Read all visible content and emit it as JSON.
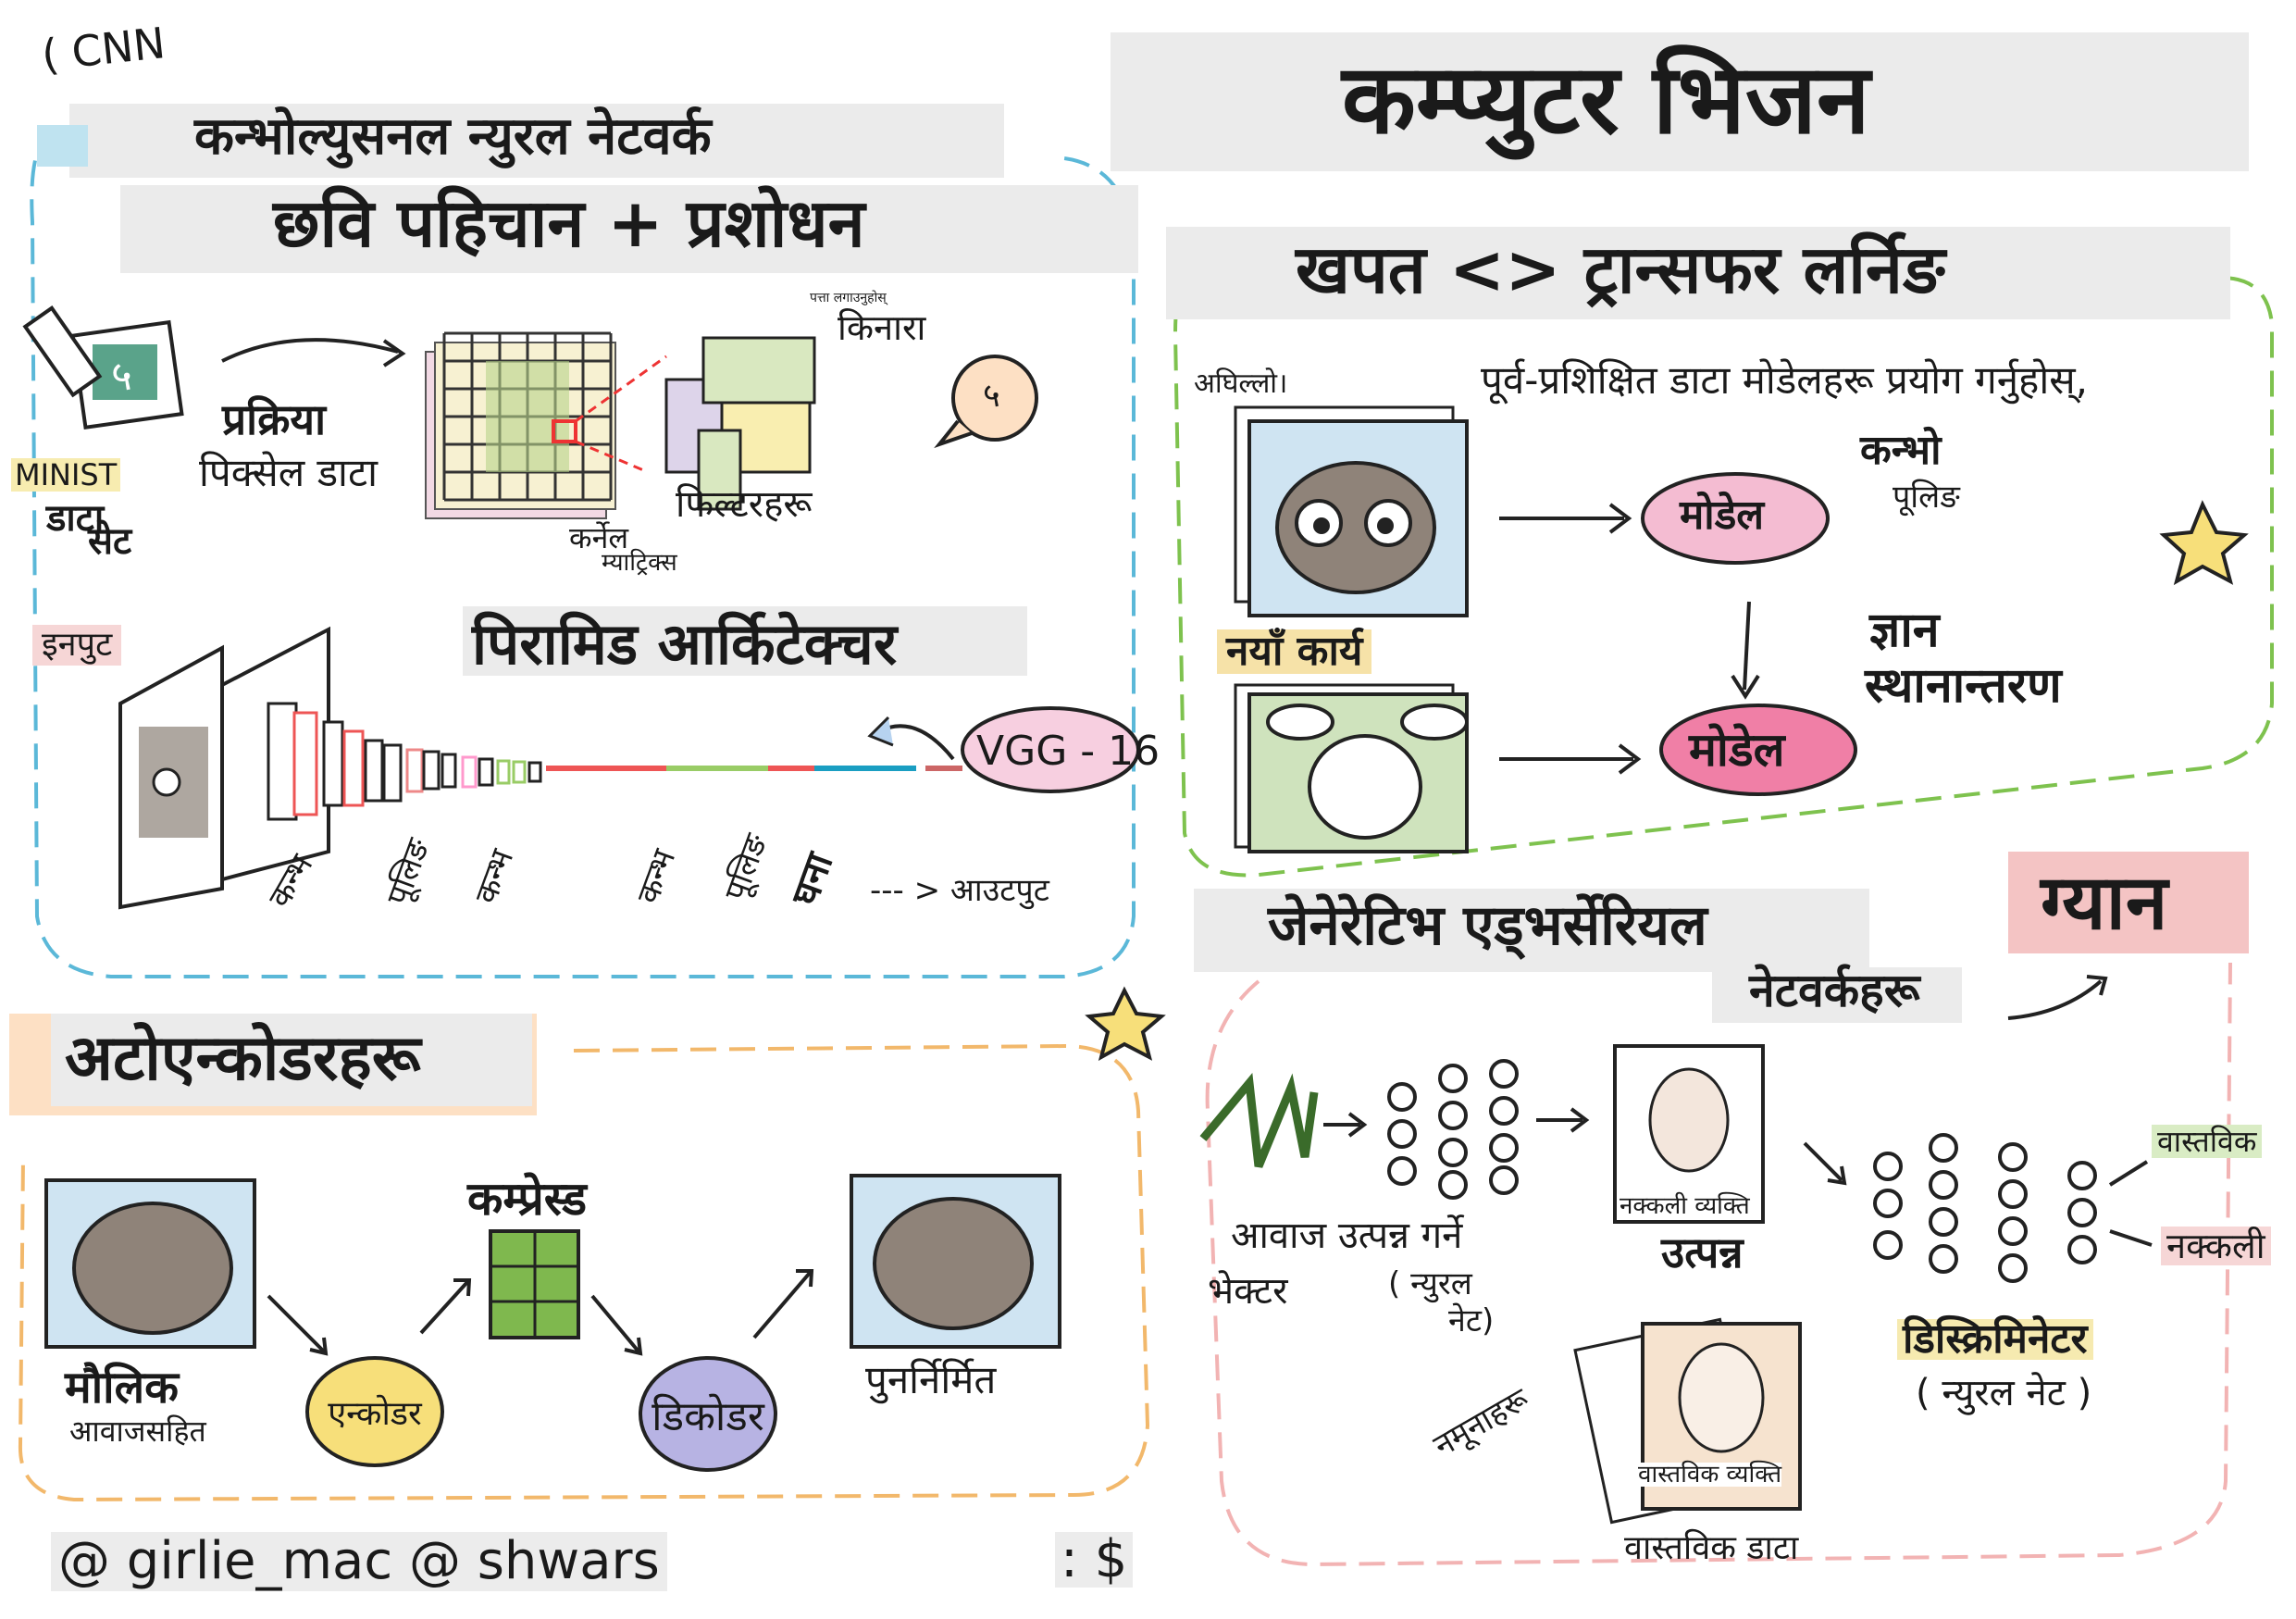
{
  "cnn": {
    "abbr": "( CNN",
    "title": "कन्भोल्युसनल न्युरल नेटवर्क",
    "subtitle": "छवि पहिचान + प्रशोधन",
    "process_line1": "प्रक्रिया",
    "process_line2": "पिक्सेल डाटा",
    "minist": "MINIST",
    "dataset_line1": "डाटा",
    "dataset_line2": "सेट",
    "digit": "५",
    "kernel_line1": "कर्नेल",
    "kernel_line2": "म्याट्रिक्स",
    "edge_small": "पत्ता लगाउनुहोस्",
    "edge": "किनारा",
    "filters": "फिल्टरहरू",
    "input": "इनपुट",
    "pyramid": "पिरामिड आर्किटेक्चर",
    "vgg": "VGG - 16",
    "flow": [
      "कन्भ",
      "पूलिङ",
      "कन्भ",
      "कन्भ",
      "पूलिङ",
      "घना"
    ],
    "output": "--- > आउटपुट"
  },
  "title": {
    "main": "कम्प्युटर भिजन"
  },
  "transfer": {
    "title": "खपत <> ट्रान्सफर लर्निङ",
    "pretrained": "पूर्व-प्रशिक्षित डाटा मोडेलहरू प्रयोग गर्नुहोस्,",
    "previous": "अघिल्लो।",
    "new_task": "नयाँ कार्य",
    "model": "मोडेल",
    "conv_line1": "कन्भो",
    "conv_line2": "पूलिङ",
    "knowledge_line1": "ज्ञान",
    "knowledge_line2": "स्थानान्तरण"
  },
  "knowledge": "ग्यान",
  "gan": {
    "title_line1": "जेनेरेटिभ एड्भर्सेरियल",
    "title_line2": "नेटवर्कहरू",
    "noise_line1": "आवाज उत्पन्न गर्ने",
    "noise_line2": "भेक्टर",
    "nn_line1": "( न्युरल",
    "nn_line2": "नेट)",
    "fake_person": "नक्कली व्यक्ति",
    "generate": "उत्पन्न",
    "real": "वास्तविक",
    "fake": "नक्कली",
    "discriminator": "डिस्क्रिमिनेटर",
    "discriminator_sub": "( न्युरल नेट )",
    "samples": "नमूनाहरू",
    "real_person": "वास्तविक व्यक्ति",
    "real_data": "वास्तविक डाटा"
  },
  "autoencoder": {
    "title": "अटोएन्कोडरहरू",
    "original_line1": "मौलिक",
    "original_line2": "आवाजसहित",
    "encoder": "एन्कोडर",
    "compressed": "कम्प्रेस्ड",
    "decoder": "डिकोडर",
    "reconstructed": "पुनर्निर्मित"
  },
  "credits": {
    "handles": "@ girlie_mac @ shwars",
    "misc": ": $"
  },
  "colors": {
    "cnn_border": "#5bb8d8",
    "transfer_border": "#7ec24e",
    "auto_border": "#f2b86b",
    "gan_border": "#f2b3b3",
    "pink": "#f4b6c6",
    "encoder": "#f7df7a",
    "decoder": "#b7b3e3"
  }
}
